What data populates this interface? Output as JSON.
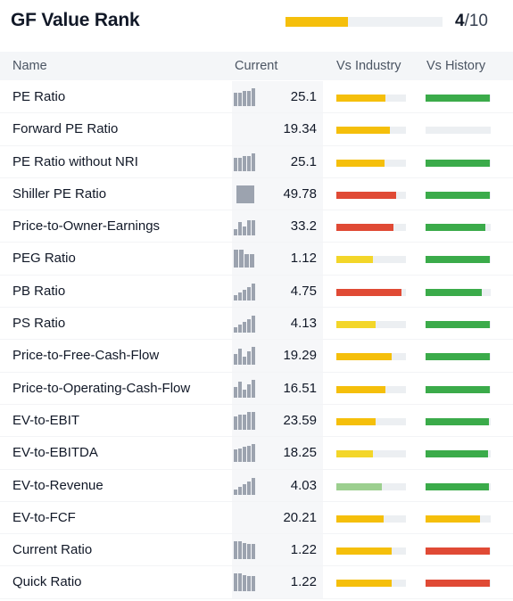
{
  "header": {
    "title": "GF Value Rank",
    "rank_value": "4",
    "rank_total": "/10",
    "rank_fraction": 0.4,
    "rank_color": "#f5bf0b"
  },
  "columns": {
    "name": "Name",
    "current": "Current",
    "vs_industry": "Vs Industry",
    "vs_history": "Vs History"
  },
  "colors": {
    "yellow": "#f5bf0b",
    "lightyellow": "#f3d629",
    "red": "#e04a35",
    "green": "#3bab4a",
    "lightgreen": "#9ccf8f",
    "track": "#eceff2"
  },
  "rows": [
    {
      "name": "PE Ratio",
      "current": "25.1",
      "spark": [
        0.75,
        0.75,
        0.85,
        0.85,
        1.0
      ],
      "industry": 0.71,
      "industry_color": "yellow",
      "history": 0.99,
      "history_color": "green"
    },
    {
      "name": "Forward PE Ratio",
      "current": "19.34",
      "spark": [],
      "industry": 0.77,
      "industry_color": "yellow",
      "history": 0.0,
      "history_color": "green"
    },
    {
      "name": "PE Ratio without NRI",
      "current": "25.1",
      "spark": [
        0.75,
        0.75,
        0.85,
        0.85,
        1.0
      ],
      "industry": 0.69,
      "industry_color": "yellow",
      "history": 0.99,
      "history_color": "green"
    },
    {
      "name": "Shiller PE Ratio",
      "current": "49.78",
      "spark": [
        1.0
      ],
      "industry": 0.86,
      "industry_color": "red",
      "history": 0.99,
      "history_color": "green"
    },
    {
      "name": "Price-to-Owner-Earnings",
      "current": "33.2",
      "spark": [
        0.35,
        0.75,
        0.5,
        0.85,
        0.85
      ],
      "industry": 0.82,
      "industry_color": "red",
      "history": 0.92,
      "history_color": "green"
    },
    {
      "name": "PEG Ratio",
      "current": "1.12",
      "spark": [
        1.0,
        1.0,
        0.75,
        0.75
      ],
      "industry": 0.53,
      "industry_color": "lightyellow",
      "history": 0.99,
      "history_color": "green"
    },
    {
      "name": "PB Ratio",
      "current": "4.75",
      "spark": [
        0.3,
        0.45,
        0.6,
        0.75,
        0.95
      ],
      "industry": 0.93,
      "industry_color": "red",
      "history": 0.86,
      "history_color": "green"
    },
    {
      "name": "PS Ratio",
      "current": "4.13",
      "spark": [
        0.3,
        0.45,
        0.6,
        0.75,
        0.95
      ],
      "industry": 0.56,
      "industry_color": "lightyellow",
      "history": 0.99,
      "history_color": "green"
    },
    {
      "name": "Price-to-Free-Cash-Flow",
      "current": "19.29",
      "spark": [
        0.6,
        0.9,
        0.45,
        0.75,
        1.0
      ],
      "industry": 0.8,
      "industry_color": "yellow",
      "history": 0.99,
      "history_color": "green"
    },
    {
      "name": "Price-to-Operating-Cash-Flow",
      "current": "16.51",
      "spark": [
        0.6,
        0.9,
        0.45,
        0.75,
        1.0
      ],
      "industry": 0.71,
      "industry_color": "yellow",
      "history": 0.99,
      "history_color": "green"
    },
    {
      "name": "EV-to-EBIT",
      "current": "23.59",
      "spark": [
        0.75,
        0.85,
        0.85,
        1.0,
        1.0
      ],
      "industry": 0.57,
      "industry_color": "yellow",
      "history": 0.97,
      "history_color": "green"
    },
    {
      "name": "EV-to-EBITDA",
      "current": "18.25",
      "spark": [
        0.7,
        0.75,
        0.85,
        0.9,
        1.0
      ],
      "industry": 0.53,
      "industry_color": "lightyellow",
      "history": 0.96,
      "history_color": "green"
    },
    {
      "name": "EV-to-Revenue",
      "current": "4.03",
      "spark": [
        0.3,
        0.45,
        0.6,
        0.75,
        0.95
      ],
      "industry": 0.66,
      "industry_color": "lightgreen",
      "history": 0.97,
      "history_color": "green"
    },
    {
      "name": "EV-to-FCF",
      "current": "20.21",
      "spark": [],
      "industry": 0.68,
      "industry_color": "yellow",
      "history": 0.84,
      "history_color": "yellow"
    },
    {
      "name": "Current Ratio",
      "current": "1.22",
      "spark": [
        1.0,
        1.0,
        0.9,
        0.85,
        0.85
      ],
      "industry": 0.8,
      "industry_color": "yellow",
      "history": 0.99,
      "history_color": "red"
    },
    {
      "name": "Quick Ratio",
      "current": "1.22",
      "spark": [
        1.0,
        1.0,
        0.9,
        0.85,
        0.85
      ],
      "industry": 0.79,
      "industry_color": "yellow",
      "history": 0.99,
      "history_color": "red"
    }
  ]
}
